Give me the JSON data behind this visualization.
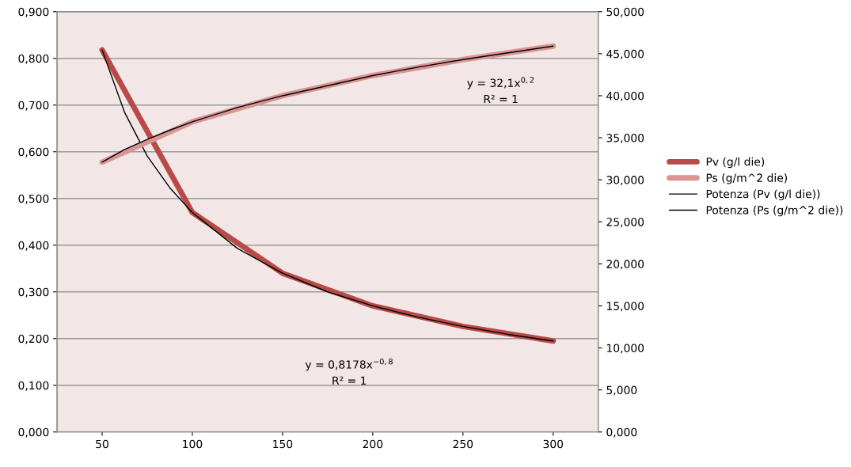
{
  "chart_data": {
    "type": "line",
    "x": [
      50,
      100,
      150,
      200,
      250,
      300
    ],
    "xlim": [
      25,
      325
    ],
    "xticks": [
      50,
      100,
      150,
      200,
      250,
      300
    ],
    "ylim": [
      0,
      0.9
    ],
    "yticks": [
      {
        "value": 0,
        "label": "0,000"
      },
      {
        "value": 0.1,
        "label": "0,100"
      },
      {
        "value": 0.2,
        "label": "0,200"
      },
      {
        "value": 0.3,
        "label": "0,300"
      },
      {
        "value": 0.4,
        "label": "0,400"
      },
      {
        "value": 0.5,
        "label": "0,500"
      },
      {
        "value": 0.6,
        "label": "0,600"
      },
      {
        "value": 0.7,
        "label": "0,700"
      },
      {
        "value": 0.8,
        "label": "0,800"
      },
      {
        "value": 0.9,
        "label": "0,900"
      }
    ],
    "y2lim": [
      0,
      50
    ],
    "y2ticks": [
      {
        "value": 0,
        "label": "0,000"
      },
      {
        "value": 5,
        "label": "5,000"
      },
      {
        "value": 10,
        "label": "10,000"
      },
      {
        "value": 15,
        "label": "15,000"
      },
      {
        "value": 20,
        "label": "20,000"
      },
      {
        "value": 25,
        "label": "25,000"
      },
      {
        "value": 30,
        "label": "30,000"
      },
      {
        "value": 35,
        "label": "35,000"
      },
      {
        "value": 40,
        "label": "40,000"
      },
      {
        "value": 45,
        "label": "45,000"
      },
      {
        "value": 50,
        "label": "50,000"
      }
    ],
    "grid": "y",
    "legend": "right",
    "series": [
      {
        "name": "Pv (g/l die)",
        "color": "#b84a47",
        "values": [
          0.818,
          0.47,
          0.34,
          0.27,
          0.226,
          0.195
        ]
      },
      {
        "name": "Ps (g/m^2 die)",
        "color": "#d99594",
        "axis": "y2",
        "values": [
          32.1,
          36.9,
          40.0,
          42.4,
          44.3,
          45.9
        ]
      },
      {
        "name": "Potenza (Pv (g/l die))",
        "color": "#000000",
        "x": [
          50,
          62.5,
          75,
          87.5,
          100,
          125,
          150,
          175,
          200,
          225,
          250,
          275,
          300
        ],
        "values": [
          0.818,
          0.684,
          0.591,
          0.523,
          0.47,
          0.393,
          0.34,
          0.3,
          0.27,
          0.246,
          0.226,
          0.209,
          0.195
        ]
      },
      {
        "name": "Potenza (Ps (g/m^2 die))",
        "color": "#000000",
        "axis": "y2",
        "x": [
          50,
          62.5,
          75,
          87.5,
          100,
          125,
          150,
          175,
          200,
          225,
          250,
          275,
          300
        ],
        "values": [
          32.1,
          33.6,
          34.8,
          35.9,
          36.9,
          38.6,
          40.0,
          41.2,
          42.4,
          43.4,
          44.3,
          45.1,
          45.9
        ]
      }
    ],
    "annotations": [
      "y = 32,1x$^{0,2}$",
      "R² = 1",
      "y = 0,8178x$^{−0,8}$",
      "R² = 1"
    ]
  }
}
